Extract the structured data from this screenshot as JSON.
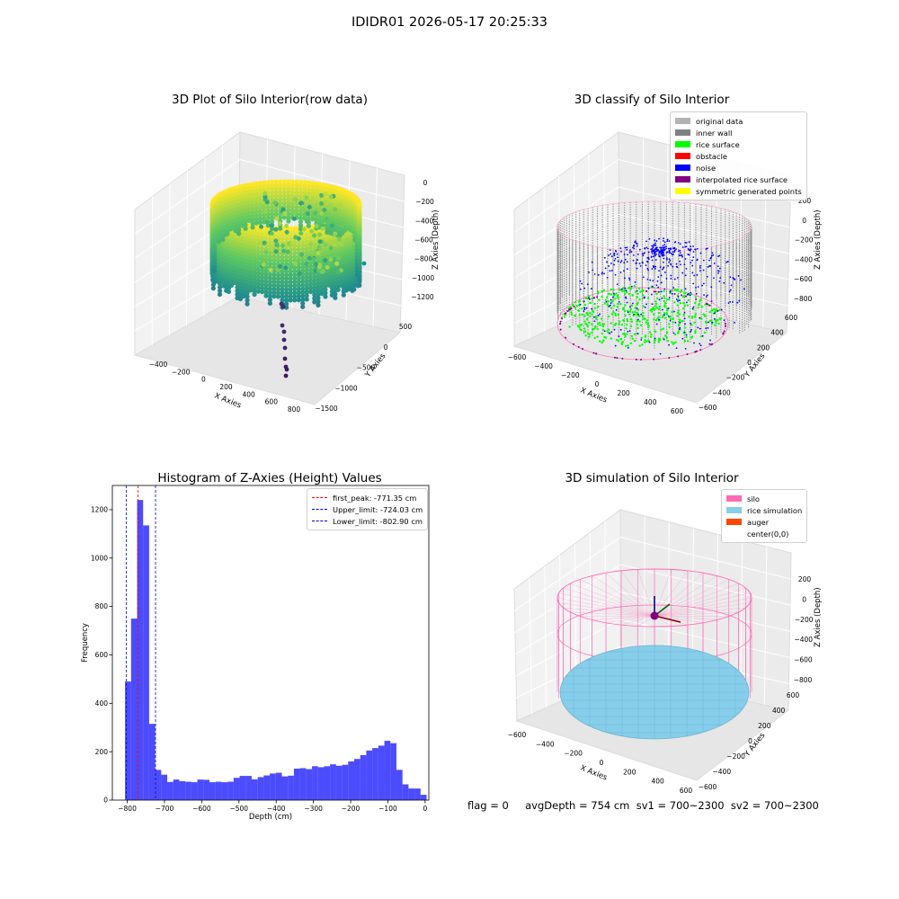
{
  "suptitle": "IDIDR01 2026-05-17 20:25:33",
  "footer": "flag = 0     avgDepth = 754 cm  sv1 = 700~2300  sv2 = 700~2300",
  "colors": {
    "histogram_bar": "#0000ff",
    "first_peak_line": "#ff0000",
    "limit_lines": "#0000cd",
    "original_data": "#b3b3b3",
    "inner_wall": "#808080",
    "rice_surface": "#00ff00",
    "obstacle": "#ff0000",
    "noise": "#0000ff",
    "interpolated_rice_surface": "#800080",
    "symmetric_generated_points": "#ffff00",
    "silo": "#ff69b4",
    "rice_simulation": "#87ceeb",
    "auger": "#ff4500"
  },
  "chart_data": [
    {
      "type": "scatter",
      "projection": "3d",
      "title": "3D Plot of Silo Interior(row data)",
      "xlabel": "X Axies",
      "ylabel": "Y Axies",
      "zlabel": "Z Axies (Depth)",
      "x_ticks": [
        "−400",
        "−200",
        "0",
        "200",
        "400",
        "600",
        "800"
      ],
      "y_ticks": [
        "500",
        "0",
        "−500",
        "−1000",
        "−1500"
      ],
      "z_ticks": [
        "0",
        "−200",
        "−400",
        "−600",
        "−800",
        "−1000",
        "−1200"
      ],
      "colormap": "viridis",
      "grid": true
    },
    {
      "type": "scatter",
      "projection": "3d",
      "title": "3D classify of Silo Interior",
      "xlabel": "X Axies",
      "ylabel": "Y Axies",
      "zlabel": "Z Axies (Depth)",
      "x_ticks": [
        "−600",
        "−400",
        "−200",
        "0",
        "200",
        "400",
        "600"
      ],
      "y_ticks": [
        "600",
        "400",
        "200",
        "0",
        "−200",
        "−400",
        "−600"
      ],
      "z_ticks": [
        "200",
        "0",
        "−200",
        "−400",
        "−600",
        "−800"
      ],
      "legend_position": "top-right",
      "legend": [
        "original data",
        "inner wall",
        "rice surface",
        "obstacle",
        "noise",
        "interpolated rice surface",
        "symmetric generated points"
      ],
      "grid": true
    },
    {
      "type": "bar",
      "title": "Histogram of Z-Axies (Height) Values",
      "xlabel": "Depth (cm)",
      "ylabel": "Frequency",
      "xlim": [
        -840,
        10
      ],
      "ylim": [
        0,
        1300
      ],
      "x_ticks": [
        -800,
        -700,
        -600,
        -500,
        -400,
        -300,
        -200,
        -100,
        0
      ],
      "y_ticks": [
        0,
        200,
        400,
        600,
        800,
        1000,
        1200
      ],
      "bin_start": -806,
      "bin_width": 16.2,
      "values": [
        490,
        750,
        1240,
        1135,
        315,
        125,
        105,
        75,
        85,
        78,
        76,
        74,
        85,
        84,
        74,
        76,
        74,
        76,
        92,
        100,
        100,
        86,
        95,
        102,
        110,
        113,
        98,
        101,
        130,
        132,
        128,
        140,
        136,
        140,
        148,
        142,
        146,
        160,
        170,
        186,
        205,
        215,
        225,
        245,
        235,
        125,
        65,
        48,
        48,
        22
      ],
      "vlines": [
        {
          "label": "first_peak: -771.35 cm",
          "x": -771.35,
          "color": "#ff0000"
        },
        {
          "label": "Upper_limit: -724.03 cm",
          "x": -724.03,
          "color": "#0000cd"
        },
        {
          "label": "Lower_limit: -802.90 cm",
          "x": -802.9,
          "color": "#0000cd"
        }
      ],
      "legend_position": "top-right",
      "grid": false
    },
    {
      "type": "scatter",
      "projection": "3d",
      "title": "3D simulation of Silo Interior",
      "xlabel": "X Axies",
      "ylabel": "Y Axies",
      "zlabel": "Z Axies (Depth)",
      "x_ticks": [
        "−600",
        "−400",
        "−200",
        "0",
        "200",
        "400",
        "600"
      ],
      "y_ticks": [
        "600",
        "400",
        "200",
        "0",
        "−200",
        "−400",
        "−600"
      ],
      "z_ticks": [
        "200",
        "0",
        "−200",
        "−400",
        "−600",
        "−800"
      ],
      "legend_position": "top-right",
      "legend": [
        "silo",
        "rice simulation",
        "auger",
        "center(0,0)"
      ],
      "grid": true
    }
  ]
}
